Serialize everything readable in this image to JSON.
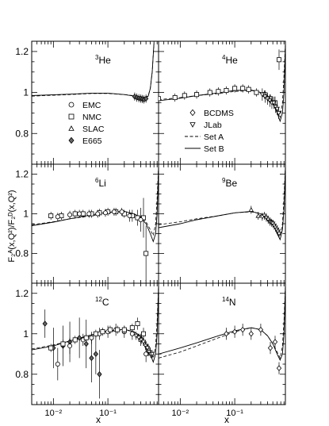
{
  "figure": {
    "ylabel": "F₂ᴬ(x,Q²)/F₂ᴰ(x,Q²)",
    "xlabel_left": "x",
    "xlabel_right": "x",
    "x_tick_labels": [
      "10⁻²",
      "10⁻¹"
    ],
    "y_tick_labels": [
      "1.2",
      "1",
      "0.8"
    ]
  },
  "legend_left": {
    "entries": [
      {
        "label": "EMC",
        "marker": "circle"
      },
      {
        "label": "NMC",
        "marker": "square"
      },
      {
        "label": "SLAC",
        "marker": "triangle-up"
      },
      {
        "label": "E665",
        "marker": "diamond-filled"
      }
    ]
  },
  "legend_right": {
    "entries": [
      {
        "label": "BCDMS",
        "marker": "diamond"
      },
      {
        "label": "JLab",
        "marker": "triangle-down"
      },
      {
        "label": "Set A",
        "line": "dashed"
      },
      {
        "label": "Set B",
        "line": "solid"
      }
    ]
  },
  "chart_data": [
    {
      "type": "scatter",
      "nucleus": "3He",
      "label_mass": "3",
      "label_symbol": "He",
      "xscale": "log",
      "xlim": [
        0.004,
        0.85
      ],
      "ylim": [
        0.65,
        1.25
      ],
      "set_a": {
        "x": [
          0.004,
          0.02,
          0.05,
          0.1,
          0.2,
          0.35,
          0.45,
          0.5,
          0.55,
          0.6,
          0.65,
          0.7
        ],
        "y": [
          0.982,
          0.99,
          0.995,
          0.995,
          0.99,
          0.982,
          0.978,
          0.978,
          0.985,
          1.02,
          1.1,
          1.24
        ]
      },
      "set_b": {
        "x": [
          0.004,
          0.02,
          0.05,
          0.1,
          0.2,
          0.35,
          0.45,
          0.5,
          0.55,
          0.6,
          0.65,
          0.7
        ],
        "y": [
          0.985,
          0.992,
          0.997,
          0.997,
          0.99,
          0.98,
          0.975,
          0.975,
          0.982,
          1.02,
          1.1,
          1.24
        ]
      },
      "series": [
        {
          "name": "E665",
          "marker": "diamond-filled",
          "x": [
            0.31,
            0.34,
            0.37,
            0.4,
            0.43,
            0.46,
            0.5
          ],
          "y": [
            0.98,
            0.975,
            0.972,
            0.97,
            0.968,
            0.966,
            0.97
          ],
          "err": [
            0.02,
            0.02,
            0.02,
            0.02,
            0.02,
            0.02,
            0.02
          ]
        }
      ]
    },
    {
      "type": "scatter",
      "nucleus": "4He",
      "label_mass": "4",
      "label_symbol": "He",
      "xscale": "log",
      "xlim": [
        0.004,
        0.85
      ],
      "ylim": [
        0.65,
        1.25
      ],
      "set_a": {
        "x": [
          0.004,
          0.01,
          0.02,
          0.05,
          0.1,
          0.2,
          0.3,
          0.4,
          0.5,
          0.6,
          0.68,
          0.75,
          0.8,
          0.85
        ],
        "y": [
          0.965,
          0.975,
          0.985,
          0.995,
          1.005,
          1.01,
          1.0,
          0.985,
          0.96,
          0.92,
          0.88,
          0.95,
          1.08,
          1.24
        ]
      },
      "set_b": {
        "x": [
          0.004,
          0.01,
          0.02,
          0.05,
          0.1,
          0.2,
          0.3,
          0.4,
          0.5,
          0.6,
          0.68,
          0.75,
          0.8,
          0.85
        ],
        "y": [
          0.96,
          0.972,
          0.985,
          0.998,
          1.01,
          1.012,
          1.0,
          0.98,
          0.95,
          0.9,
          0.86,
          0.9,
          1.0,
          1.24
        ]
      },
      "series": [
        {
          "name": "NMC",
          "marker": "square",
          "x": [
            0.004,
            0.008,
            0.012,
            0.02,
            0.035,
            0.05,
            0.07,
            0.1,
            0.14,
            0.18,
            0.25,
            0.35,
            0.45,
            0.55,
            0.65
          ],
          "y": [
            0.97,
            0.975,
            0.985,
            0.99,
            1.0,
            1.005,
            1.01,
            1.02,
            1.02,
            1.015,
            1.0,
            0.99,
            0.97,
            0.95,
            1.16
          ],
          "err": [
            0.02,
            0.02,
            0.02,
            0.02,
            0.02,
            0.02,
            0.02,
            0.02,
            0.02,
            0.02,
            0.02,
            0.02,
            0.02,
            0.03,
            0.05
          ]
        },
        {
          "name": "JLab",
          "marker": "triangle-down",
          "x": [
            0.32,
            0.36,
            0.4,
            0.44,
            0.48,
            0.52,
            0.56,
            0.6,
            0.64
          ],
          "y": [
            0.99,
            0.98,
            0.97,
            0.96,
            0.95,
            0.95,
            0.93,
            0.92,
            0.9
          ],
          "err": [
            0.03,
            0.03,
            0.03,
            0.03,
            0.03,
            0.03,
            0.03,
            0.03,
            0.03
          ]
        }
      ]
    },
    {
      "type": "scatter",
      "nucleus": "6Li",
      "label_mass": "6",
      "label_symbol": "Li",
      "xscale": "log",
      "xlim": [
        0.004,
        0.85
      ],
      "ylim": [
        0.65,
        1.25
      ],
      "set_a": {
        "x": [
          0.004,
          0.01,
          0.02,
          0.05,
          0.1,
          0.2,
          0.3,
          0.4,
          0.5,
          0.6,
          0.68,
          0.75,
          0.8,
          0.85
        ],
        "y": [
          0.945,
          0.96,
          0.975,
          0.99,
          1.005,
          1.01,
          1.0,
          0.985,
          0.96,
          0.92,
          0.89,
          0.95,
          1.08,
          1.24
        ]
      },
      "set_b": {
        "x": [
          0.004,
          0.01,
          0.02,
          0.05,
          0.1,
          0.2,
          0.3,
          0.4,
          0.5,
          0.6,
          0.68,
          0.75,
          0.8,
          0.85
        ],
        "y": [
          0.94,
          0.958,
          0.975,
          0.995,
          1.008,
          1.012,
          1.0,
          0.98,
          0.95,
          0.9,
          0.86,
          0.9,
          1.0,
          1.24
        ]
      },
      "series": [
        {
          "name": "NMC",
          "marker": "square",
          "x": [
            0.009,
            0.014,
            0.025,
            0.035,
            0.05,
            0.07,
            0.1,
            0.14,
            0.2,
            0.28,
            0.35,
            0.45,
            0.5
          ],
          "y": [
            0.99,
            0.99,
            1.0,
            1.0,
            1.0,
            1.005,
            1.01,
            1.01,
            1.0,
            0.99,
            0.98,
            0.98,
            0.8
          ],
          "err": [
            0.02,
            0.02,
            0.02,
            0.02,
            0.02,
            0.02,
            0.02,
            0.02,
            0.02,
            0.03,
            0.04,
            0.1,
            0.14
          ]
        },
        {
          "name": "EMC",
          "marker": "circle",
          "x": [
            0.012,
            0.02,
            0.03,
            0.045,
            0.065,
            0.09,
            0.13,
            0.18,
            0.25,
            0.4
          ],
          "y": [
            0.985,
            0.995,
            1.0,
            1.0,
            1.0,
            1.005,
            1.01,
            1.01,
            0.99,
            0.97
          ],
          "err": [
            0.02,
            0.02,
            0.02,
            0.02,
            0.02,
            0.02,
            0.02,
            0.02,
            0.03,
            0.06
          ]
        }
      ]
    },
    {
      "type": "scatter",
      "nucleus": "9Be",
      "label_mass": "9",
      "label_symbol": "Be",
      "xscale": "log",
      "xlim": [
        0.004,
        0.85
      ],
      "ylim": [
        0.65,
        1.25
      ],
      "set_a": {
        "x": [
          0.004,
          0.01,
          0.02,
          0.05,
          0.1,
          0.2,
          0.3,
          0.4,
          0.5,
          0.6,
          0.68,
          0.75,
          0.8,
          0.85
        ],
        "y": [
          0.945,
          0.96,
          0.975,
          0.99,
          1.005,
          1.01,
          1.0,
          0.985,
          0.96,
          0.92,
          0.89,
          0.95,
          1.08,
          1.24
        ]
      },
      "set_b": {
        "x": [
          0.004,
          0.01,
          0.02,
          0.05,
          0.1,
          0.2,
          0.3,
          0.4,
          0.5,
          0.6,
          0.68,
          0.75,
          0.8,
          0.85
        ],
        "y": [
          0.93,
          0.95,
          0.97,
          0.99,
          1.005,
          1.012,
          1.0,
          0.98,
          0.95,
          0.9,
          0.87,
          0.92,
          1.02,
          1.24
        ]
      },
      "series": [
        {
          "name": "JLab",
          "marker": "triangle-down",
          "x": [
            0.32,
            0.35,
            0.38,
            0.41,
            0.44,
            0.47,
            0.5,
            0.53,
            0.56,
            0.59,
            0.62,
            0.65
          ],
          "y": [
            0.985,
            0.99,
            0.98,
            0.97,
            0.96,
            0.955,
            0.95,
            0.94,
            0.93,
            0.92,
            0.91,
            0.9
          ],
          "err": [
            0.02,
            0.02,
            0.02,
            0.02,
            0.02,
            0.02,
            0.02,
            0.02,
            0.02,
            0.02,
            0.02,
            0.02
          ]
        },
        {
          "name": "SLAC",
          "marker": "triangle-up",
          "x": [
            0.2,
            0.27
          ],
          "y": [
            1.02,
            0.99
          ],
          "err": [
            0.02,
            0.02
          ]
        }
      ]
    },
    {
      "type": "scatter",
      "nucleus": "12C",
      "label_mass": "12",
      "label_symbol": "C",
      "xscale": "log",
      "xlim": [
        0.004,
        0.85
      ],
      "ylim": [
        0.65,
        1.25
      ],
      "set_a": {
        "x": [
          0.004,
          0.01,
          0.02,
          0.05,
          0.1,
          0.2,
          0.3,
          0.4,
          0.5,
          0.6,
          0.68,
          0.75,
          0.8,
          0.85
        ],
        "y": [
          0.925,
          0.945,
          0.965,
          0.99,
          1.01,
          1.02,
          1.01,
          0.99,
          0.96,
          0.92,
          0.88,
          0.94,
          1.06,
          1.24
        ]
      },
      "set_b": {
        "x": [
          0.004,
          0.01,
          0.02,
          0.05,
          0.1,
          0.2,
          0.3,
          0.4,
          0.5,
          0.6,
          0.68,
          0.75,
          0.8,
          0.85
        ],
        "y": [
          0.92,
          0.94,
          0.965,
          0.995,
          1.015,
          1.022,
          1.01,
          0.985,
          0.95,
          0.9,
          0.86,
          0.9,
          1.0,
          1.24
        ]
      },
      "series": [
        {
          "name": "E665",
          "marker": "diamond-filled",
          "x": [
            0.007,
            0.01,
            0.015,
            0.02,
            0.03,
            0.04,
            0.05,
            0.06,
            0.07
          ],
          "y": [
            1.05,
            0.93,
            0.94,
            0.96,
            0.98,
            0.95,
            0.88,
            0.9,
            0.8
          ],
          "err": [
            0.07,
            0.1,
            0.1,
            0.1,
            0.1,
            0.12,
            0.12,
            0.1,
            0.12
          ]
        },
        {
          "name": "EMC",
          "marker": "circle",
          "x": [
            0.012,
            0.02,
            0.035,
            0.05,
            0.07,
            0.1,
            0.14,
            0.2,
            0.28,
            0.4,
            0.5
          ],
          "y": [
            0.85,
            0.94,
            0.97,
            0.98,
            1.0,
            1.01,
            1.02,
            1.01,
            1.0,
            0.97,
            0.9
          ],
          "err": [
            0.08,
            0.04,
            0.03,
            0.03,
            0.03,
            0.03,
            0.03,
            0.03,
            0.03,
            0.03,
            0.04
          ]
        },
        {
          "name": "NMC",
          "marker": "square",
          "x": [
            0.009,
            0.015,
            0.025,
            0.04,
            0.06,
            0.08,
            0.11,
            0.15,
            0.2,
            0.28,
            0.35,
            0.45,
            0.55
          ],
          "y": [
            0.93,
            0.95,
            0.97,
            0.98,
            1.0,
            1.01,
            1.02,
            1.02,
            1.02,
            1.03,
            1.05,
            1.0,
            0.92
          ],
          "err": [
            0.02,
            0.02,
            0.02,
            0.02,
            0.02,
            0.02,
            0.02,
            0.02,
            0.02,
            0.02,
            0.03,
            0.03,
            0.03
          ]
        },
        {
          "name": "JLab",
          "marker": "triangle-down",
          "x": [
            0.33,
            0.37,
            0.41,
            0.45,
            0.49,
            0.53,
            0.57,
            0.61,
            0.65
          ],
          "y": [
            0.99,
            0.98,
            0.97,
            0.96,
            0.94,
            0.93,
            0.91,
            0.9,
            0.9
          ],
          "err": [
            0.02,
            0.02,
            0.02,
            0.02,
            0.02,
            0.02,
            0.02,
            0.02,
            0.02
          ]
        }
      ]
    },
    {
      "type": "scatter",
      "nucleus": "14N",
      "label_mass": "14",
      "label_symbol": "N",
      "xscale": "log",
      "xlim": [
        0.004,
        0.85
      ],
      "ylim": [
        0.65,
        1.25
      ],
      "set_a": {
        "x": [
          0.004,
          0.01,
          0.02,
          0.05,
          0.1,
          0.2,
          0.3,
          0.4,
          0.5,
          0.6,
          0.68,
          0.75,
          0.8,
          0.85
        ],
        "y": [
          0.88,
          0.91,
          0.94,
          0.98,
          1.01,
          1.03,
          1.02,
          0.99,
          0.95,
          0.91,
          0.88,
          0.94,
          1.06,
          1.24
        ]
      },
      "set_b": {
        "x": [
          0.004,
          0.01,
          0.02,
          0.05,
          0.1,
          0.2,
          0.3,
          0.4,
          0.5,
          0.6,
          0.68,
          0.75,
          0.8,
          0.85
        ],
        "y": [
          0.9,
          0.93,
          0.955,
          0.99,
          1.015,
          1.03,
          1.02,
          0.99,
          0.95,
          0.9,
          0.87,
          0.9,
          1.0,
          1.24
        ]
      },
      "series": [
        {
          "name": "BCDMS",
          "marker": "diamond",
          "x": [
            0.07,
            0.1,
            0.14,
            0.2,
            0.3,
            0.45,
            0.55,
            0.65
          ],
          "y": [
            1.0,
            1.01,
            1.02,
            1.0,
            1.02,
            0.93,
            0.96,
            0.83
          ],
          "err": [
            0.03,
            0.03,
            0.03,
            0.03,
            0.03,
            0.03,
            0.03,
            0.03
          ]
        }
      ]
    }
  ]
}
